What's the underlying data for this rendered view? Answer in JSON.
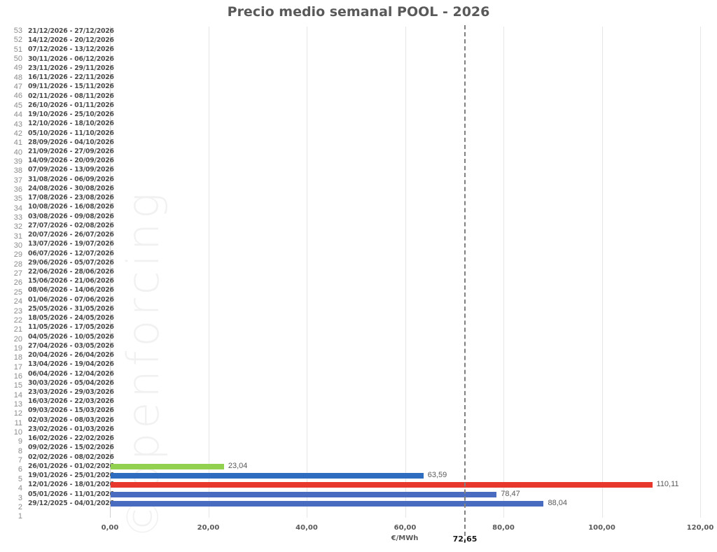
{
  "chart_data": {
    "type": "bar",
    "orientation": "horizontal",
    "title": "Precio medio semanal POOL - 2026",
    "xlabel": "€/MWh",
    "ylabel": "",
    "xlim": [
      0,
      120
    ],
    "x_ticks": [
      "0,00",
      "20,00",
      "40,00",
      "60,00",
      "80,00",
      "100,00",
      "120,00"
    ],
    "grid": true,
    "legend": null,
    "average": {
      "value": 72.65,
      "label": "72,65",
      "style": "dashed",
      "color": "#808080"
    },
    "categories": [
      {
        "week": 1,
        "range": "29/12/2025 - 04/01/2026"
      },
      {
        "week": 2,
        "range": "05/01/2026 - 11/01/2026"
      },
      {
        "week": 3,
        "range": "12/01/2026 - 18/01/2026"
      },
      {
        "week": 4,
        "range": "19/01/2026 - 25/01/2026"
      },
      {
        "week": 5,
        "range": "26/01/2026 - 01/02/2026"
      },
      {
        "week": 6,
        "range": "02/02/2026 - 08/02/2026"
      },
      {
        "week": 7,
        "range": "09/02/2026 - 15/02/2026"
      },
      {
        "week": 8,
        "range": "16/02/2026 - 22/02/2026"
      },
      {
        "week": 9,
        "range": "23/02/2026 - 01/03/2026"
      },
      {
        "week": 10,
        "range": "02/03/2026 - 08/03/2026"
      },
      {
        "week": 11,
        "range": "09/03/2026 - 15/03/2026"
      },
      {
        "week": 12,
        "range": "16/03/2026 - 22/03/2026"
      },
      {
        "week": 13,
        "range": "23/03/2026 - 29/03/2026"
      },
      {
        "week": 14,
        "range": "30/03/2026 - 05/04/2026"
      },
      {
        "week": 15,
        "range": "06/04/2026 - 12/04/2026"
      },
      {
        "week": 16,
        "range": "13/04/2026 - 19/04/2026"
      },
      {
        "week": 17,
        "range": "20/04/2026 - 26/04/2026"
      },
      {
        "week": 18,
        "range": "27/04/2026 - 03/05/2026"
      },
      {
        "week": 19,
        "range": "04/05/2026 - 10/05/2026"
      },
      {
        "week": 20,
        "range": "11/05/2026 - 17/05/2026"
      },
      {
        "week": 21,
        "range": "18/05/2026 - 24/05/2026"
      },
      {
        "week": 22,
        "range": "25/05/2026 - 31/05/2026"
      },
      {
        "week": 23,
        "range": "01/06/2026 - 07/06/2026"
      },
      {
        "week": 24,
        "range": "08/06/2026 - 14/06/2026"
      },
      {
        "week": 25,
        "range": "15/06/2026 - 21/06/2026"
      },
      {
        "week": 26,
        "range": "22/06/2026 - 28/06/2026"
      },
      {
        "week": 27,
        "range": "29/06/2026 - 05/07/2026"
      },
      {
        "week": 28,
        "range": "06/07/2026 - 12/07/2026"
      },
      {
        "week": 29,
        "range": "13/07/2026 - 19/07/2026"
      },
      {
        "week": 30,
        "range": "20/07/2026 - 26/07/2026"
      },
      {
        "week": 31,
        "range": "27/07/2026 - 02/08/2026"
      },
      {
        "week": 32,
        "range": "03/08/2026 - 09/08/2026"
      },
      {
        "week": 33,
        "range": "10/08/2026 - 16/08/2026"
      },
      {
        "week": 34,
        "range": "17/08/2026 - 23/08/2026"
      },
      {
        "week": 35,
        "range": "24/08/2026 - 30/08/2026"
      },
      {
        "week": 36,
        "range": "31/08/2026 - 06/09/2026"
      },
      {
        "week": 37,
        "range": "07/09/2026 - 13/09/2026"
      },
      {
        "week": 38,
        "range": "14/09/2026 - 20/09/2026"
      },
      {
        "week": 39,
        "range": "21/09/2026 - 27/09/2026"
      },
      {
        "week": 40,
        "range": "28/09/2026 - 04/10/2026"
      },
      {
        "week": 41,
        "range": "05/10/2026 - 11/10/2026"
      },
      {
        "week": 42,
        "range": "12/10/2026 - 18/10/2026"
      },
      {
        "week": 43,
        "range": "19/10/2026 - 25/10/2026"
      },
      {
        "week": 44,
        "range": "26/10/2026 - 01/11/2026"
      },
      {
        "week": 45,
        "range": "02/11/2026 - 08/11/2026"
      },
      {
        "week": 46,
        "range": "09/11/2026 - 15/11/2026"
      },
      {
        "week": 47,
        "range": "16/11/2026 - 22/11/2026"
      },
      {
        "week": 48,
        "range": "23/11/2026 - 29/11/2026"
      },
      {
        "week": 49,
        "range": "30/11/2026 - 06/12/2026"
      },
      {
        "week": 50,
        "range": "07/12/2026 - 13/12/2026"
      },
      {
        "week": 51,
        "range": "14/12/2026 - 20/12/2026"
      },
      {
        "week": 52,
        "range": "21/12/2026 - 27/12/2026"
      },
      {
        "week": 53,
        "range": ""
      }
    ],
    "row_numbers_left": [
      53,
      52,
      51,
      50,
      49,
      48,
      47,
      46,
      45,
      44,
      43,
      42,
      41,
      40,
      39,
      38,
      37,
      36,
      35,
      34,
      33,
      32,
      31,
      30,
      29,
      28,
      27,
      26,
      25,
      24,
      23,
      22,
      21,
      20,
      19,
      18,
      17,
      16,
      15,
      14,
      13,
      12,
      11,
      10,
      9,
      8,
      7,
      6,
      5,
      4,
      3,
      2,
      1
    ],
    "row_labels_top_to_bottom": [
      "21/12/2026 - 27/12/2026",
      "14/12/2026 - 20/12/2026",
      "07/12/2026 - 13/12/2026",
      "30/11/2026 - 06/12/2026",
      "23/11/2026 - 29/11/2026",
      "16/11/2026 - 22/11/2026",
      "09/11/2026 - 15/11/2026",
      "02/11/2026 - 08/11/2026",
      "26/10/2026 - 01/11/2026",
      "19/10/2026 - 25/10/2026",
      "12/10/2026 - 18/10/2026",
      "05/10/2026 - 11/10/2026",
      "28/09/2026 - 04/10/2026",
      "21/09/2026 - 27/09/2026",
      "14/09/2026 - 20/09/2026",
      "07/09/2026 - 13/09/2026",
      "31/08/2026 - 06/09/2026",
      "24/08/2026 - 30/08/2026",
      "17/08/2026 - 23/08/2026",
      "10/08/2026 - 16/08/2026",
      "03/08/2026 - 09/08/2026",
      "27/07/2026 - 02/08/2026",
      "20/07/2026 - 26/07/2026",
      "13/07/2026 - 19/07/2026",
      "06/07/2026 - 12/07/2026",
      "29/06/2026 - 05/07/2026",
      "22/06/2026 - 28/06/2026",
      "15/06/2026 - 21/06/2026",
      "08/06/2026 - 14/06/2026",
      "01/06/2026 - 07/06/2026",
      "25/05/2026 - 31/05/2026",
      "18/05/2026 - 24/05/2026",
      "11/05/2026 - 17/05/2026",
      "04/05/2026 - 10/05/2026",
      "27/04/2026 - 03/05/2026",
      "20/04/2026 - 26/04/2026",
      "13/04/2026 - 19/04/2026",
      "06/04/2026 - 12/04/2026",
      "30/03/2026 - 05/04/2026",
      "23/03/2026 - 29/03/2026",
      "16/03/2026 - 22/03/2026",
      "09/03/2026 - 15/03/2026",
      "02/03/2026 - 08/03/2026",
      "23/02/2026 - 01/03/2026",
      "16/02/2026 - 22/02/2026",
      "09/02/2026 - 15/02/2026",
      "02/02/2026 - 08/02/2026",
      "26/01/2026 - 01/02/2026",
      "19/01/2026 - 25/01/2026",
      "12/01/2026 - 18/01/2026",
      "05/01/2026 - 11/01/2026",
      "29/12/2025 - 04/01/2026"
    ],
    "series": [
      {
        "name": "Precio medio semanal",
        "values": [
          {
            "row": 1,
            "range": "29/12/2025 - 04/01/2026",
            "value": 88.04,
            "label": "88,04",
            "color": "#4A6CC0"
          },
          {
            "row": 2,
            "range": "05/01/2026 - 11/01/2026",
            "value": 78.47,
            "label": "78,47",
            "color": "#4A6CC0"
          },
          {
            "row": 3,
            "range": "12/01/2026 - 18/01/2026",
            "value": 110.11,
            "label": "110,11",
            "color": "#E8372C"
          },
          {
            "row": 4,
            "range": "19/01/2026 - 25/01/2026",
            "value": 63.59,
            "label": "63,59",
            "color": "#2E6CC0"
          },
          {
            "row": 5,
            "range": "26/01/2026 - 01/02/2026",
            "value": 23.04,
            "label": "23,04",
            "color": "#92D050"
          }
        ]
      }
    ]
  },
  "watermark": "©openforcing"
}
